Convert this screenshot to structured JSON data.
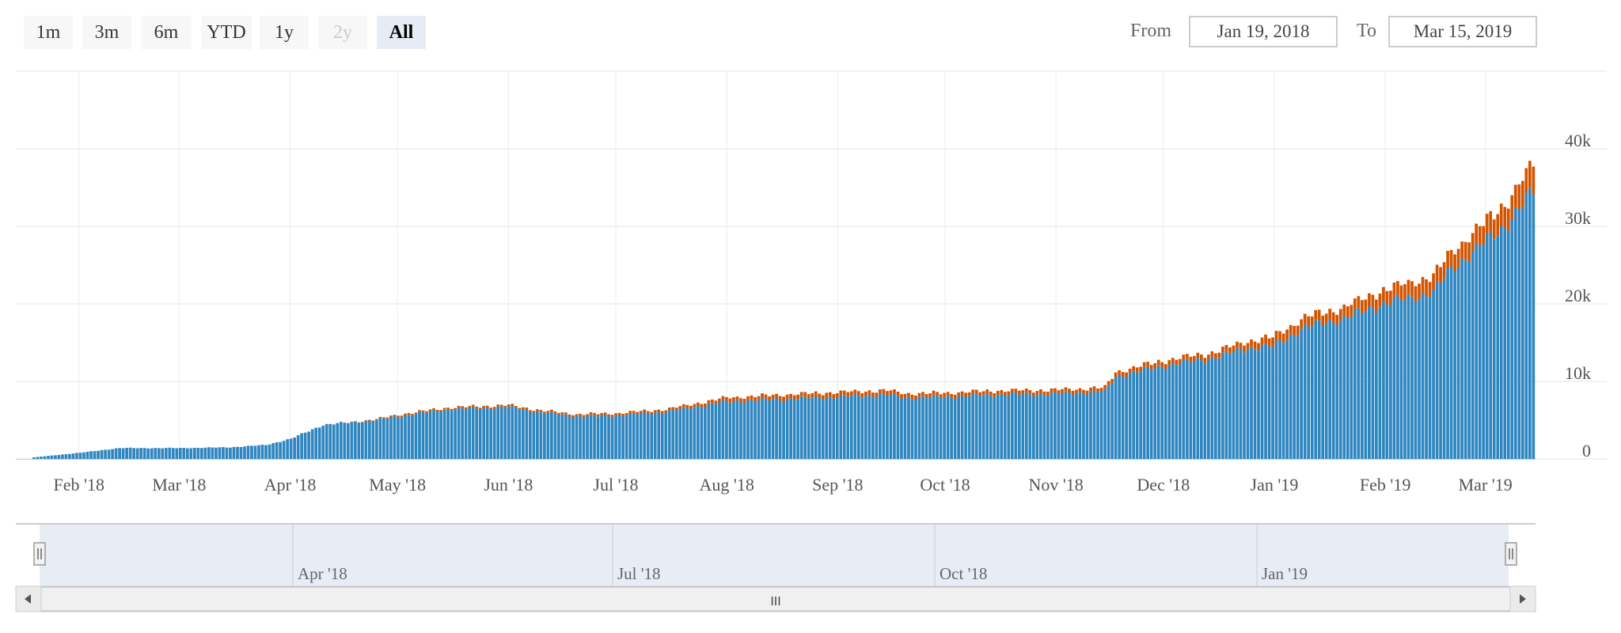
{
  "range_selector": {
    "buttons": [
      {
        "label": "1m",
        "state": "normal"
      },
      {
        "label": "3m",
        "state": "normal"
      },
      {
        "label": "6m",
        "state": "normal"
      },
      {
        "label": "YTD",
        "state": "normal"
      },
      {
        "label": "1y",
        "state": "normal"
      },
      {
        "label": "2y",
        "state": "disabled"
      },
      {
        "label": "All",
        "state": "active"
      }
    ],
    "from_label": "From",
    "from_value": "Jan 19, 2018",
    "to_label": "To",
    "to_value": "Mar 15, 2019"
  },
  "navigator": {
    "labels": [
      "Apr '18",
      "Jul '18",
      "Oct '18",
      "Jan '19"
    ],
    "scrollbar_grip": "III"
  },
  "chart_data": {
    "type": "bar",
    "stacked": true,
    "grid": true,
    "legend": "none",
    "colors": [
      "#2e86c1",
      "#d35400"
    ],
    "x_start": "2018-01-19",
    "x_end": "2019-03-15",
    "x_ticks": [
      "Feb '18",
      "Mar '18",
      "Apr '18",
      "May '18",
      "Jun '18",
      "Jul '18",
      "Aug '18",
      "Sep '18",
      "Oct '18",
      "Nov '18",
      "Dec '18",
      "Jan '19",
      "Feb '19",
      "Mar '19"
    ],
    "y_ticks": [
      "0",
      "10k",
      "20k",
      "30k",
      "40k"
    ],
    "ylim": [
      0,
      50000
    ],
    "series": [
      {
        "values": [
          {
            "date": "2018-01-19",
            "v": 200
          },
          {
            "date": "2018-02-01",
            "v": 800
          },
          {
            "date": "2018-02-12",
            "v": 1400
          },
          {
            "date": "2018-03-01",
            "v": 1400
          },
          {
            "date": "2018-03-15",
            "v": 1500
          },
          {
            "date": "2018-03-25",
            "v": 1800
          },
          {
            "date": "2018-04-01",
            "v": 2600
          },
          {
            "date": "2018-04-10",
            "v": 4400
          },
          {
            "date": "2018-04-25",
            "v": 5000
          },
          {
            "date": "2018-05-01",
            "v": 5500
          },
          {
            "date": "2018-05-15",
            "v": 6400
          },
          {
            "date": "2018-06-01",
            "v": 6700
          },
          {
            "date": "2018-06-10",
            "v": 6000
          },
          {
            "date": "2018-06-20",
            "v": 5500
          },
          {
            "date": "2018-07-01",
            "v": 5600
          },
          {
            "date": "2018-07-15",
            "v": 6100
          },
          {
            "date": "2018-08-01",
            "v": 7400
          },
          {
            "date": "2018-08-15",
            "v": 7700
          },
          {
            "date": "2018-09-01",
            "v": 8000
          },
          {
            "date": "2018-09-15",
            "v": 8300
          },
          {
            "date": "2018-09-20",
            "v": 7900
          },
          {
            "date": "2018-10-01",
            "v": 8000
          },
          {
            "date": "2018-10-15",
            "v": 8300
          },
          {
            "date": "2018-11-01",
            "v": 8400
          },
          {
            "date": "2018-11-15",
            "v": 8700
          },
          {
            "date": "2018-11-18",
            "v": 10600
          },
          {
            "date": "2018-12-01",
            "v": 12000
          },
          {
            "date": "2018-12-15",
            "v": 13000
          },
          {
            "date": "2018-12-25",
            "v": 14300
          },
          {
            "date": "2019-01-01",
            "v": 14500
          },
          {
            "date": "2019-01-10",
            "v": 17000
          },
          {
            "date": "2019-01-20",
            "v": 18000
          },
          {
            "date": "2019-02-01",
            "v": 20000
          },
          {
            "date": "2019-02-15",
            "v": 21500
          },
          {
            "date": "2019-02-20",
            "v": 24500
          },
          {
            "date": "2019-03-01",
            "v": 27800
          },
          {
            "date": "2019-03-08",
            "v": 30500
          },
          {
            "date": "2019-03-15",
            "v": 34500
          }
        ]
      },
      {
        "values": [
          {
            "date": "2018-01-19",
            "v": 0
          },
          {
            "date": "2018-04-15",
            "v": 0
          },
          {
            "date": "2018-05-01",
            "v": 200
          },
          {
            "date": "2018-07-15",
            "v": 300
          },
          {
            "date": "2018-08-01",
            "v": 500
          },
          {
            "date": "2018-09-01",
            "v": 600
          },
          {
            "date": "2018-10-01",
            "v": 500
          },
          {
            "date": "2018-11-15",
            "v": 500
          },
          {
            "date": "2018-11-18",
            "v": 600
          },
          {
            "date": "2018-12-15",
            "v": 700
          },
          {
            "date": "2018-12-25",
            "v": 900
          },
          {
            "date": "2019-01-01",
            "v": 1200
          },
          {
            "date": "2019-01-20",
            "v": 1400
          },
          {
            "date": "2019-02-01",
            "v": 1800
          },
          {
            "date": "2019-02-20",
            "v": 2200
          },
          {
            "date": "2019-03-01",
            "v": 2500
          },
          {
            "date": "2019-03-08",
            "v": 2900
          },
          {
            "date": "2019-03-15",
            "v": 3500
          }
        ]
      }
    ]
  }
}
